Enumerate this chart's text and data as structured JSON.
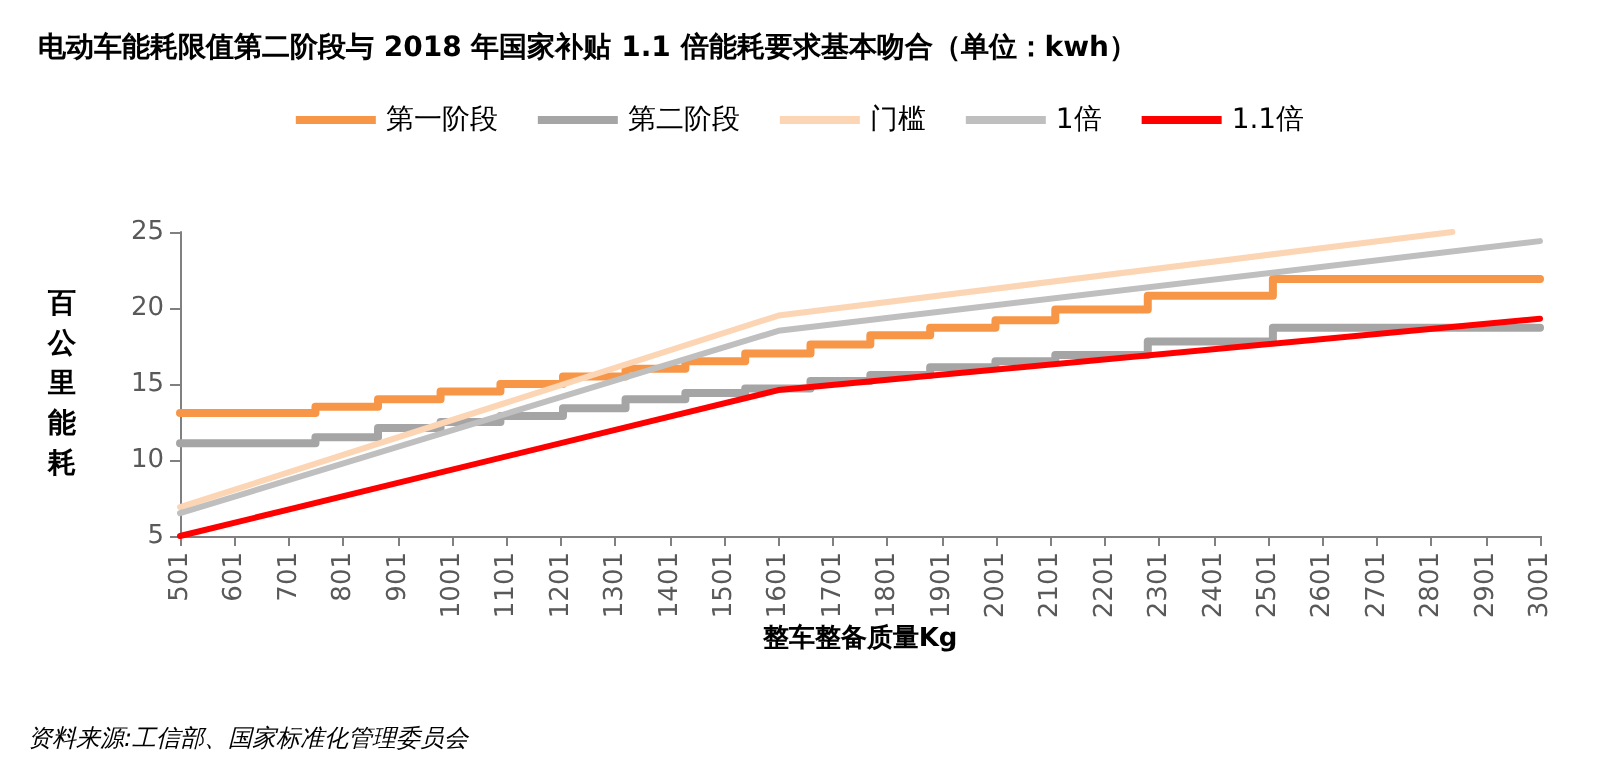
{
  "chart_data": {
    "type": "line",
    "title": "电动车能耗限值第二阶段与 2018 年国家补贴 1.1 倍能耗要求基本吻合（单位：kwh）",
    "xlabel": "整车整备质量Kg",
    "ylabel": "百公里能耗",
    "xlim": [
      501,
      3001
    ],
    "xticks": [
      501,
      601,
      701,
      801,
      901,
      1001,
      1101,
      1201,
      1301,
      1401,
      1501,
      1601,
      1701,
      1801,
      1901,
      2001,
      2101,
      2201,
      2301,
      2401,
      2501,
      2601,
      2701,
      2801,
      2901,
      3001
    ],
    "ylim": [
      5,
      25
    ],
    "yticks": [
      5,
      10,
      15,
      20,
      25
    ],
    "legend": "top",
    "grid": false,
    "marker": "none",
    "line_style": "solid",
    "series": [
      {
        "name": "第一阶段",
        "type": "step",
        "color": "#f79646",
        "x": [
          501,
          750,
          865,
          980,
          1090,
          1205,
          1320,
          1430,
          1540,
          1660,
          1770,
          1880,
          2000,
          2110,
          2280,
          2510,
          3001
        ],
        "values": [
          13.1,
          13.5,
          14.0,
          14.5,
          15.0,
          15.5,
          16.0,
          16.5,
          17.0,
          17.6,
          18.2,
          18.7,
          19.2,
          19.9,
          20.8,
          21.9,
          21.9
        ]
      },
      {
        "name": "第二阶段",
        "type": "step",
        "color": "#a5a5a5",
        "x": [
          501,
          750,
          865,
          980,
          1090,
          1205,
          1320,
          1430,
          1540,
          1660,
          1770,
          1880,
          2000,
          2110,
          2280,
          2510,
          3001
        ],
        "values": [
          11.1,
          11.5,
          12.1,
          12.5,
          12.9,
          13.4,
          14.0,
          14.4,
          14.7,
          15.2,
          15.6,
          16.1,
          16.5,
          16.9,
          17.8,
          18.7,
          18.7
        ]
      },
      {
        "name": "门槛",
        "type": "line",
        "color": "#fcd5b4",
        "x": [
          501,
          1601,
          2840
        ],
        "values": [
          6.9,
          19.5,
          25.0
        ]
      },
      {
        "name": "1倍",
        "type": "line",
        "color": "#bfbfbf",
        "x": [
          501,
          1601,
          3001
        ],
        "values": [
          6.5,
          18.5,
          24.4
        ]
      },
      {
        "name": "1.1倍",
        "type": "line",
        "color": "#ff0000",
        "x": [
          501,
          1601,
          3001
        ],
        "values": [
          5.0,
          14.6,
          19.3
        ]
      }
    ],
    "annotations": [
      "资料来源:工信部、国家标准化管理委员会"
    ]
  }
}
